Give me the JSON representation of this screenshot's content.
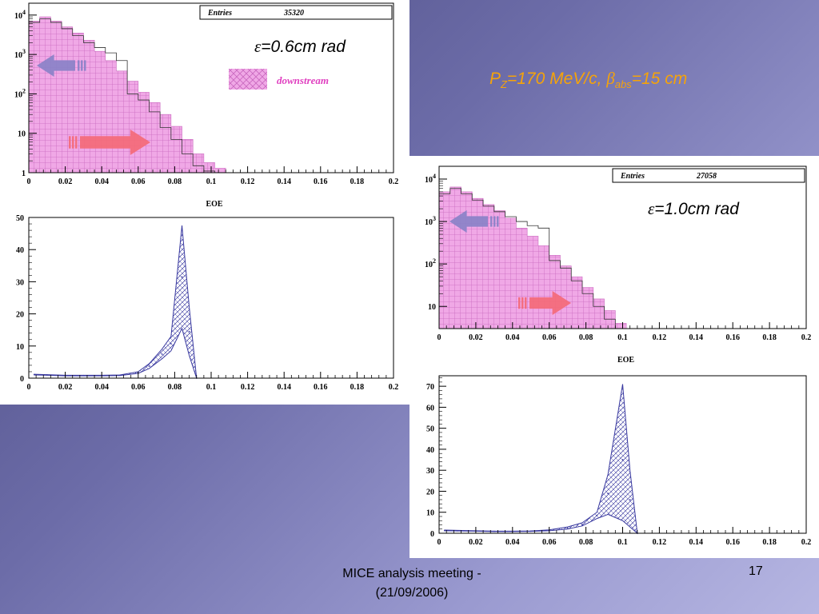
{
  "slide": {
    "subtitle": {
      "p": "P",
      "p_sub": "Z",
      "mid": "=170 MeV/c, ",
      "beta": "β",
      "beta_sub": "abs",
      "end": "=15 cm"
    },
    "footer": {
      "meeting_line1": "MICE analysis meeting -",
      "meeting_line2": "(21/09/2006)",
      "page_number": "17"
    }
  },
  "left": {
    "eps_symbol": "ε",
    "eps_value": "=0.6cm rad",
    "legend_label": "downstream"
  },
  "right": {
    "eps_symbol": "ε",
    "eps_value": "=1.0cm rad"
  },
  "colors": {
    "fill_pink": "#f0a8e6",
    "hatch_pink": "#c968bf",
    "band_blue": "#3a3aa0",
    "arrow_blue": "#8a82c8",
    "arrow_red": "#f46a78",
    "subtitle_orange": "#f5a30a",
    "legend_text": "#e040c0"
  },
  "chart_data": [
    {
      "id": "left-top",
      "type": "histogram",
      "stats_label": "Entries",
      "stats_value": "35320",
      "xlabel": "EOE",
      "xlim": [
        0,
        0.2
      ],
      "yscale": "log",
      "ylim": [
        1,
        20000
      ],
      "xticks": [
        "0",
        "0.02",
        "0.04",
        "0.06",
        "0.08",
        "0.1",
        "0.12",
        "0.14",
        "0.16",
        "0.18",
        "0.2"
      ],
      "yticks": [
        {
          "v": 1,
          "label": "1"
        },
        {
          "v": 10,
          "label": "10"
        },
        {
          "v": 100,
          "label": "10^2"
        },
        {
          "v": 1000,
          "label": "10^3"
        },
        {
          "v": 10000,
          "label": "10^4"
        }
      ],
      "bin_width": 0.006,
      "counts": [
        7000,
        9000,
        7000,
        5000,
        3500,
        2300,
        1200,
        700,
        380,
        210,
        110,
        60,
        30,
        15,
        7,
        3,
        1.8,
        1.3,
        1,
        1,
        1,
        1
      ],
      "overlay_counts": [
        6500,
        8000,
        6500,
        4500,
        3000,
        2000,
        1500,
        1100,
        700,
        100,
        70,
        35,
        14,
        7,
        3,
        1.5,
        1.1,
        1,
        1,
        1,
        1,
        1
      ]
    },
    {
      "id": "left-bottom",
      "type": "area",
      "xlim": [
        0,
        0.2
      ],
      "ylim": [
        0,
        50
      ],
      "xticks": [
        "0",
        "0.02",
        "0.04",
        "0.06",
        "0.08",
        "0.1",
        "0.12",
        "0.14",
        "0.16",
        "0.18",
        "0.2"
      ],
      "yticks": [
        "0",
        "10",
        "20",
        "30",
        "40",
        "50"
      ],
      "x": [
        0.003,
        0.01,
        0.02,
        0.03,
        0.04,
        0.05,
        0.06,
        0.066,
        0.073,
        0.078,
        0.084,
        0.088,
        0.092
      ],
      "upper": [
        1.2,
        1.1,
        0.9,
        0.9,
        0.9,
        1.0,
        2.0,
        4.5,
        9.0,
        13.0,
        47.5,
        22.0,
        0
      ],
      "lower": [
        1.0,
        0.9,
        0.7,
        0.7,
        0.7,
        0.8,
        1.5,
        3.0,
        6.0,
        8.5,
        15.5,
        7.0,
        0
      ],
      "mid": [
        1.1,
        1.0,
        0.8,
        0.8,
        0.8,
        0.9,
        1.7,
        3.7,
        7.5,
        10.7,
        31.5,
        14.5,
        0
      ]
    },
    {
      "id": "right-top",
      "type": "histogram",
      "stats_label": "Entries",
      "stats_value": "27058",
      "xlabel": "EOE",
      "xlim": [
        0,
        0.2
      ],
      "yscale": "log",
      "ylim": [
        3,
        20000
      ],
      "xticks": [
        "0",
        "0.02",
        "0.04",
        "0.06",
        "0.08",
        "0.1",
        "0.12",
        "0.14",
        "0.16",
        "0.18",
        "0.2"
      ],
      "yticks": [
        {
          "v": 10,
          "label": "10"
        },
        {
          "v": 100,
          "label": "10^2"
        },
        {
          "v": 1000,
          "label": "10^3"
        },
        {
          "v": 10000,
          "label": "10^4"
        }
      ],
      "bin_width": 0.006,
      "counts": [
        5000,
        6500,
        5000,
        3500,
        2500,
        1800,
        1200,
        700,
        450,
        270,
        160,
        90,
        50,
        28,
        15,
        8,
        4,
        3,
        3,
        3
      ],
      "overlay_counts": [
        4500,
        6000,
        4500,
        3200,
        2300,
        1700,
        1300,
        1000,
        800,
        700,
        120,
        80,
        40,
        20,
        10,
        5,
        3,
        3,
        3,
        3
      ]
    },
    {
      "id": "right-bottom",
      "type": "area",
      "xlim": [
        0,
        0.2
      ],
      "ylim": [
        0,
        75
      ],
      "xticks": [
        "0",
        "0.02",
        "0.04",
        "0.06",
        "0.08",
        "0.1",
        "0.12",
        "0.14",
        "0.16",
        "0.18",
        "0.2"
      ],
      "yticks": [
        "0",
        "10",
        "20",
        "30",
        "40",
        "50",
        "60",
        "70"
      ],
      "x": [
        0.003,
        0.01,
        0.02,
        0.03,
        0.04,
        0.05,
        0.06,
        0.07,
        0.078,
        0.086,
        0.092,
        0.1,
        0.104,
        0.108
      ],
      "upper": [
        1.5,
        1.4,
        1.2,
        1.0,
        1.0,
        1.1,
        1.6,
        3.0,
        5.0,
        10.0,
        28.0,
        71.0,
        30.0,
        0
      ],
      "lower": [
        1.2,
        1.1,
        1.0,
        0.8,
        0.8,
        0.9,
        1.2,
        2.0,
        3.5,
        7.0,
        9.0,
        6.0,
        3.0,
        0
      ],
      "mid": [
        1.3,
        1.2,
        1.1,
        0.9,
        0.9,
        1.0,
        1.4,
        2.5,
        4.2,
        8.5,
        19.0,
        35.0,
        16.0,
        0
      ]
    }
  ]
}
